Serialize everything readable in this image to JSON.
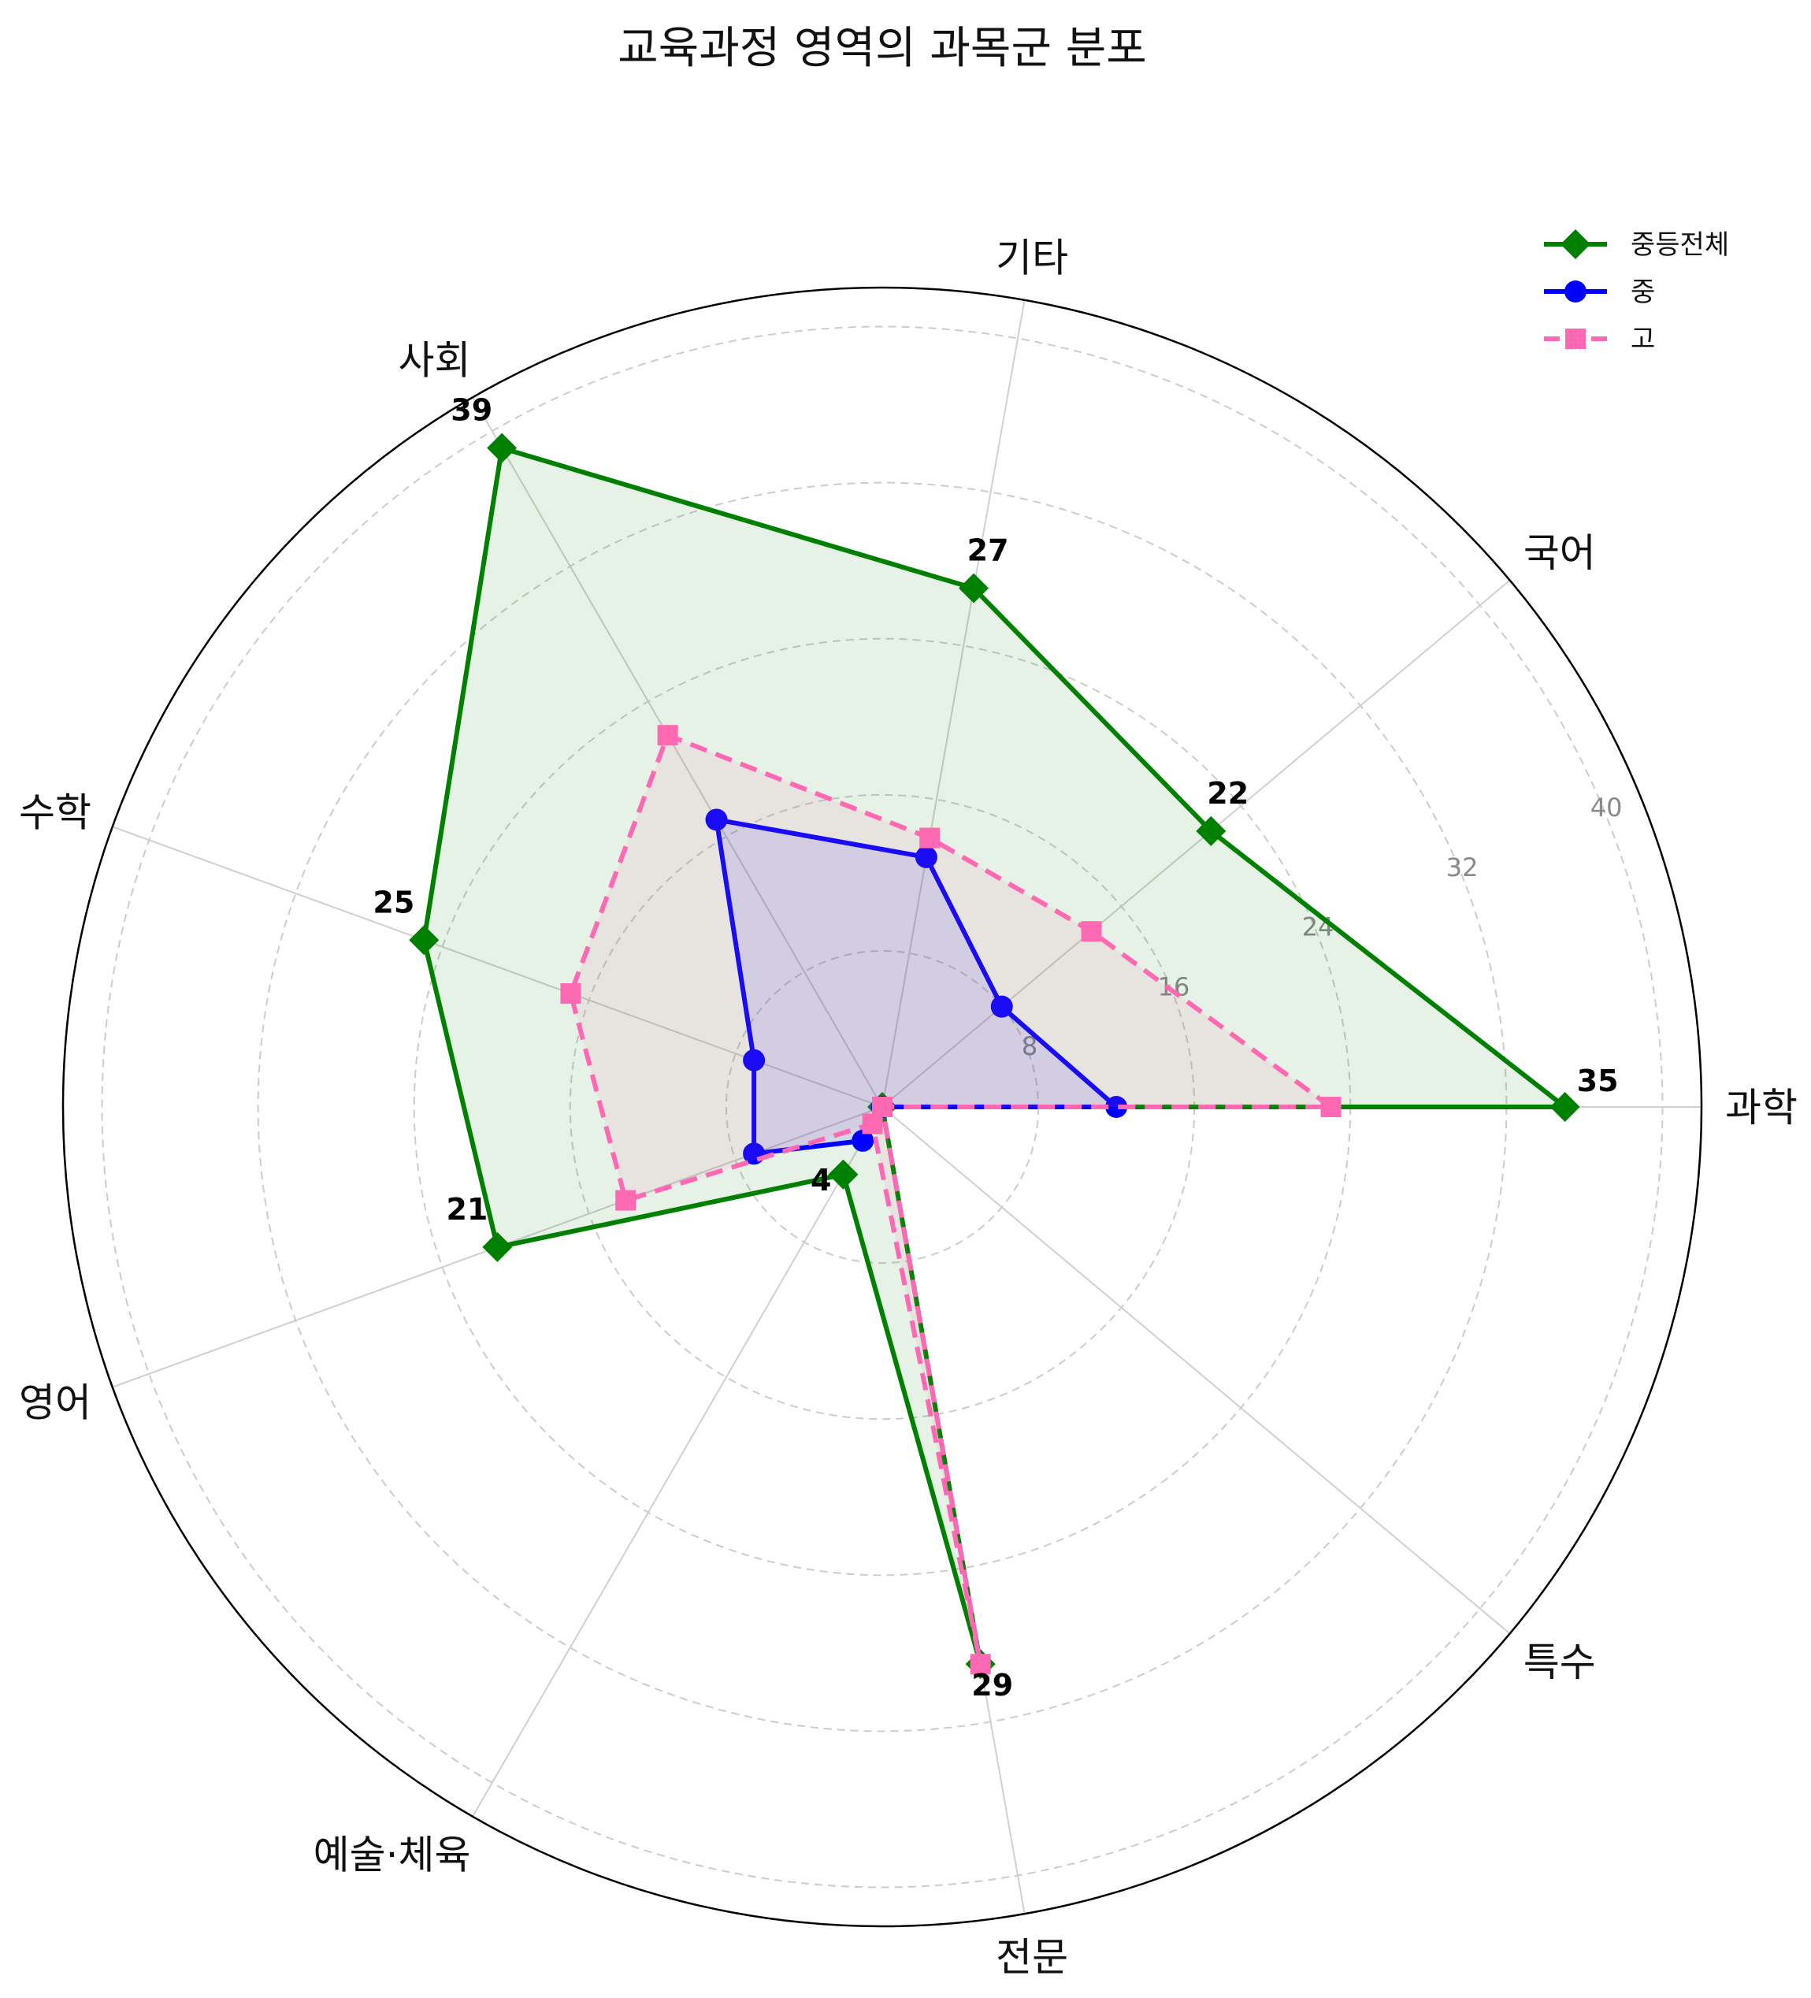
{
  "chart_data": {
    "type": "radar",
    "title": "교육과정 영역의 과목군 분포",
    "categories": [
      "과학",
      "국어",
      "기타",
      "사회",
      "수학",
      "영어",
      "예술·체육",
      "전문",
      "특수"
    ],
    "rlim": [
      0,
      42
    ],
    "rticks": [
      8,
      16,
      24,
      32,
      40
    ],
    "rtick_labels": [
      "8",
      "16",
      "24",
      "32",
      "40"
    ],
    "grid": true,
    "legend_position": "top-right",
    "series": [
      {
        "name": "중등전체",
        "values": [
          35,
          22,
          27,
          39,
          25,
          21,
          4,
          29,
          0
        ],
        "color": "#008000",
        "marker": "diamond",
        "linestyle": "solid",
        "fill": true
      },
      {
        "name": "중",
        "values": [
          12,
          8,
          13,
          17,
          7,
          7,
          2,
          0,
          0
        ],
        "color": "#0000ff",
        "marker": "circle",
        "linestyle": "solid",
        "fill": true
      },
      {
        "name": "고",
        "values": [
          23,
          14,
          14,
          22,
          17,
          14,
          1,
          29,
          0
        ],
        "color": "#ff69b4",
        "marker": "square",
        "linestyle": "dashed",
        "fill": true
      }
    ],
    "data_labels": [
      "35",
      "22",
      "27",
      "39",
      "25",
      "21",
      "4",
      "29"
    ]
  }
}
